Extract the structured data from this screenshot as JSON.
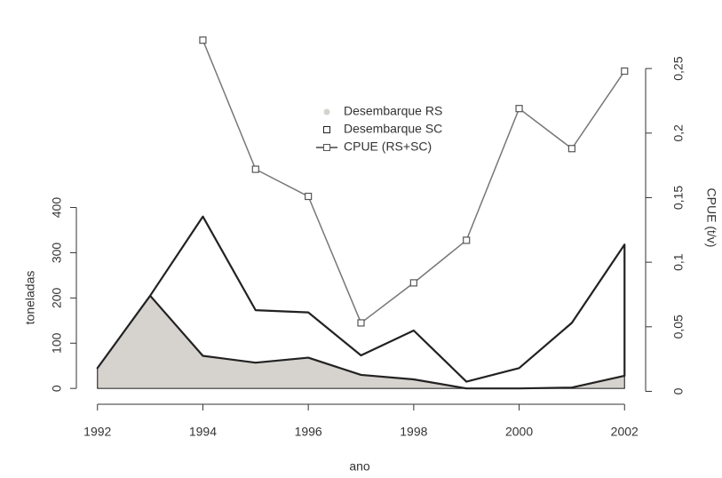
{
  "chart_data": {
    "type": "area",
    "xlabel": "ano",
    "ylabel": "toneladas",
    "y2label": "CPUE (t/v)",
    "x": [
      1992,
      1993,
      1994,
      1995,
      1996,
      1997,
      1998,
      1999,
      2000,
      2001,
      2002
    ],
    "series": [
      {
        "name": "Desembarque RS",
        "color": "#d6d2ce",
        "values": [
          45,
          205,
          72,
          57,
          68,
          30,
          20,
          0,
          0,
          2,
          28
        ]
      },
      {
        "name": "Desembarque SC",
        "color": "#222222",
        "values": [
          0,
          0,
          308,
          116,
          100,
          43,
          108,
          15,
          45,
          143,
          290
        ]
      },
      {
        "name": "CPUE (RS+SC)",
        "color": "#777777",
        "axis": "y2",
        "type": "line",
        "values": [
          null,
          null,
          0.272,
          0.172,
          0.151,
          0.053,
          0.084,
          0.117,
          0.219,
          0.188,
          0.248
        ]
      }
    ],
    "xlim": [
      1991.6,
      2002.4
    ],
    "xticks": [
      1992,
      1994,
      1996,
      1998,
      2000,
      2002
    ],
    "ylim": [
      -35,
      790
    ],
    "yticks": [
      0,
      100,
      200,
      300,
      400
    ],
    "y2lim": [
      -0.01,
      0.279
    ],
    "y2ticks": [
      0,
      {
        "value": 0.05,
        "label": "0,05"
      },
      {
        "value": 0.1,
        "label": "0,1"
      },
      {
        "value": 0.15,
        "label": "0,15"
      },
      {
        "value": 0.2,
        "label": "0,2"
      },
      {
        "value": 0.25,
        "label": "0,25"
      }
    ],
    "stacked": true,
    "legend": "top"
  }
}
